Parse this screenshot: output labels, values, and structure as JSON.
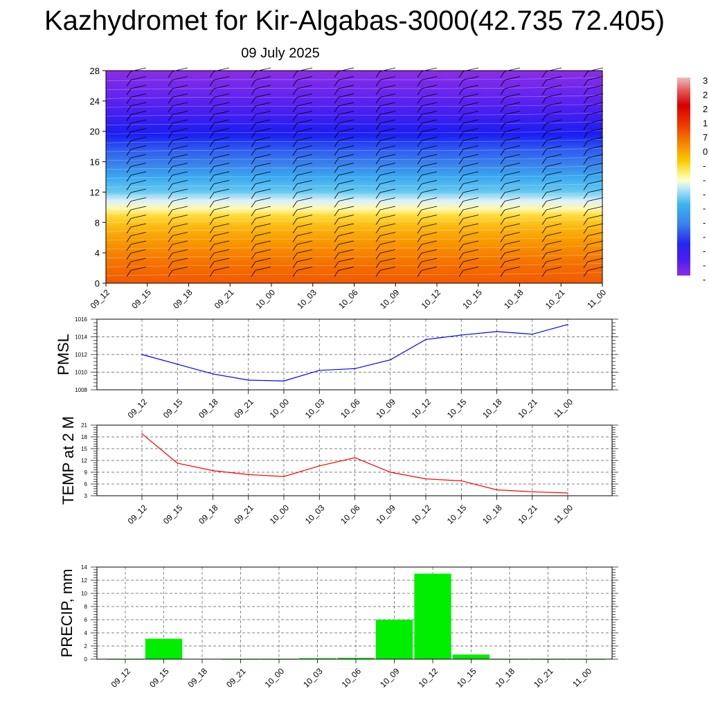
{
  "title": "Kazhydromet for Kir-Algabas-3000(42.735 72.405)",
  "subtitle": "09 July 2025",
  "colors": {
    "pmsl_line": "#0000ff",
    "temp_line": "#ff0000",
    "precip_bar": "#00ee00",
    "grid": "#555555",
    "colorbar_stops": [
      "#e8bcbc",
      "#d80000",
      "#ee2200",
      "#f26a00",
      "#f8a400",
      "#ffe040",
      "#ffffb0",
      "#b8e8f8",
      "#3cb4f0",
      "#3a7ee8",
      "#2222f0",
      "#6622ee",
      "#8a2ee6"
    ]
  },
  "chart_data": [
    {
      "type": "heatmap",
      "title": "",
      "xlabel": "",
      "ylabel": "",
      "x_ticks": [
        "09_12",
        "09_15",
        "09_18",
        "09_21",
        "10_00",
        "10_03",
        "10_06",
        "10_09",
        "10_12",
        "10_15",
        "10_18",
        "10_21",
        "11_00"
      ],
      "y_ticks": [
        0,
        4,
        8,
        12,
        16,
        20,
        24,
        28
      ],
      "ylim": [
        0,
        28
      ],
      "colorbar_labels": [
        "3",
        "2",
        "2",
        "1",
        "7",
        "0",
        "-",
        "-",
        "-",
        "-",
        "-",
        "-",
        "-",
        "-",
        "-"
      ],
      "wind_barbs": true
    },
    {
      "type": "line",
      "ylabel": "PMSL",
      "categories": [
        "09_12",
        "09_15",
        "09_18",
        "09_21",
        "10_00",
        "10_03",
        "10_06",
        "10_09",
        "10_12",
        "10_15",
        "10_18",
        "10_21",
        "11_00"
      ],
      "values": [
        1012.0,
        1010.9,
        1009.8,
        1009.1,
        1009.0,
        1010.2,
        1010.4,
        1011.4,
        1013.7,
        1014.2,
        1014.6,
        1014.3,
        1015.4
      ],
      "ylim": [
        1008,
        1016
      ],
      "y_ticks": [
        "1008",
        "1010",
        "1012",
        "1014",
        "1016"
      ],
      "grid": true
    },
    {
      "type": "line",
      "ylabel": "TEMP at 2 M",
      "categories": [
        "09_12",
        "09_15",
        "09_18",
        "09_21",
        "10_00",
        "10_03",
        "10_06",
        "10_09",
        "10_12",
        "10_15",
        "10_18",
        "10_21",
        "11_00"
      ],
      "values": [
        18.8,
        11.3,
        9.4,
        8.4,
        7.9,
        10.6,
        12.7,
        9.0,
        7.3,
        6.8,
        4.5,
        4.0,
        3.7
      ],
      "ylim": [
        3,
        21
      ],
      "y_ticks": [
        "3",
        "6",
        "9",
        "12",
        "15",
        "18",
        "21"
      ],
      "grid": true
    },
    {
      "type": "bar",
      "ylabel": "PRECIP, mm",
      "categories": [
        "09_12",
        "09_15",
        "09_18",
        "09_21",
        "10_00",
        "10_03",
        "10_06",
        "10_09",
        "10_12",
        "10_15",
        "10_18",
        "10_21",
        "11_00"
      ],
      "values": [
        0,
        3.1,
        0.05,
        0,
        0,
        0.15,
        0.2,
        6.0,
        13.0,
        0.7,
        0,
        0,
        0
      ],
      "ylim": [
        0,
        14
      ],
      "y_ticks": [
        "0",
        "2",
        "4",
        "6",
        "8",
        "10",
        "12",
        "14"
      ],
      "grid": true
    }
  ]
}
